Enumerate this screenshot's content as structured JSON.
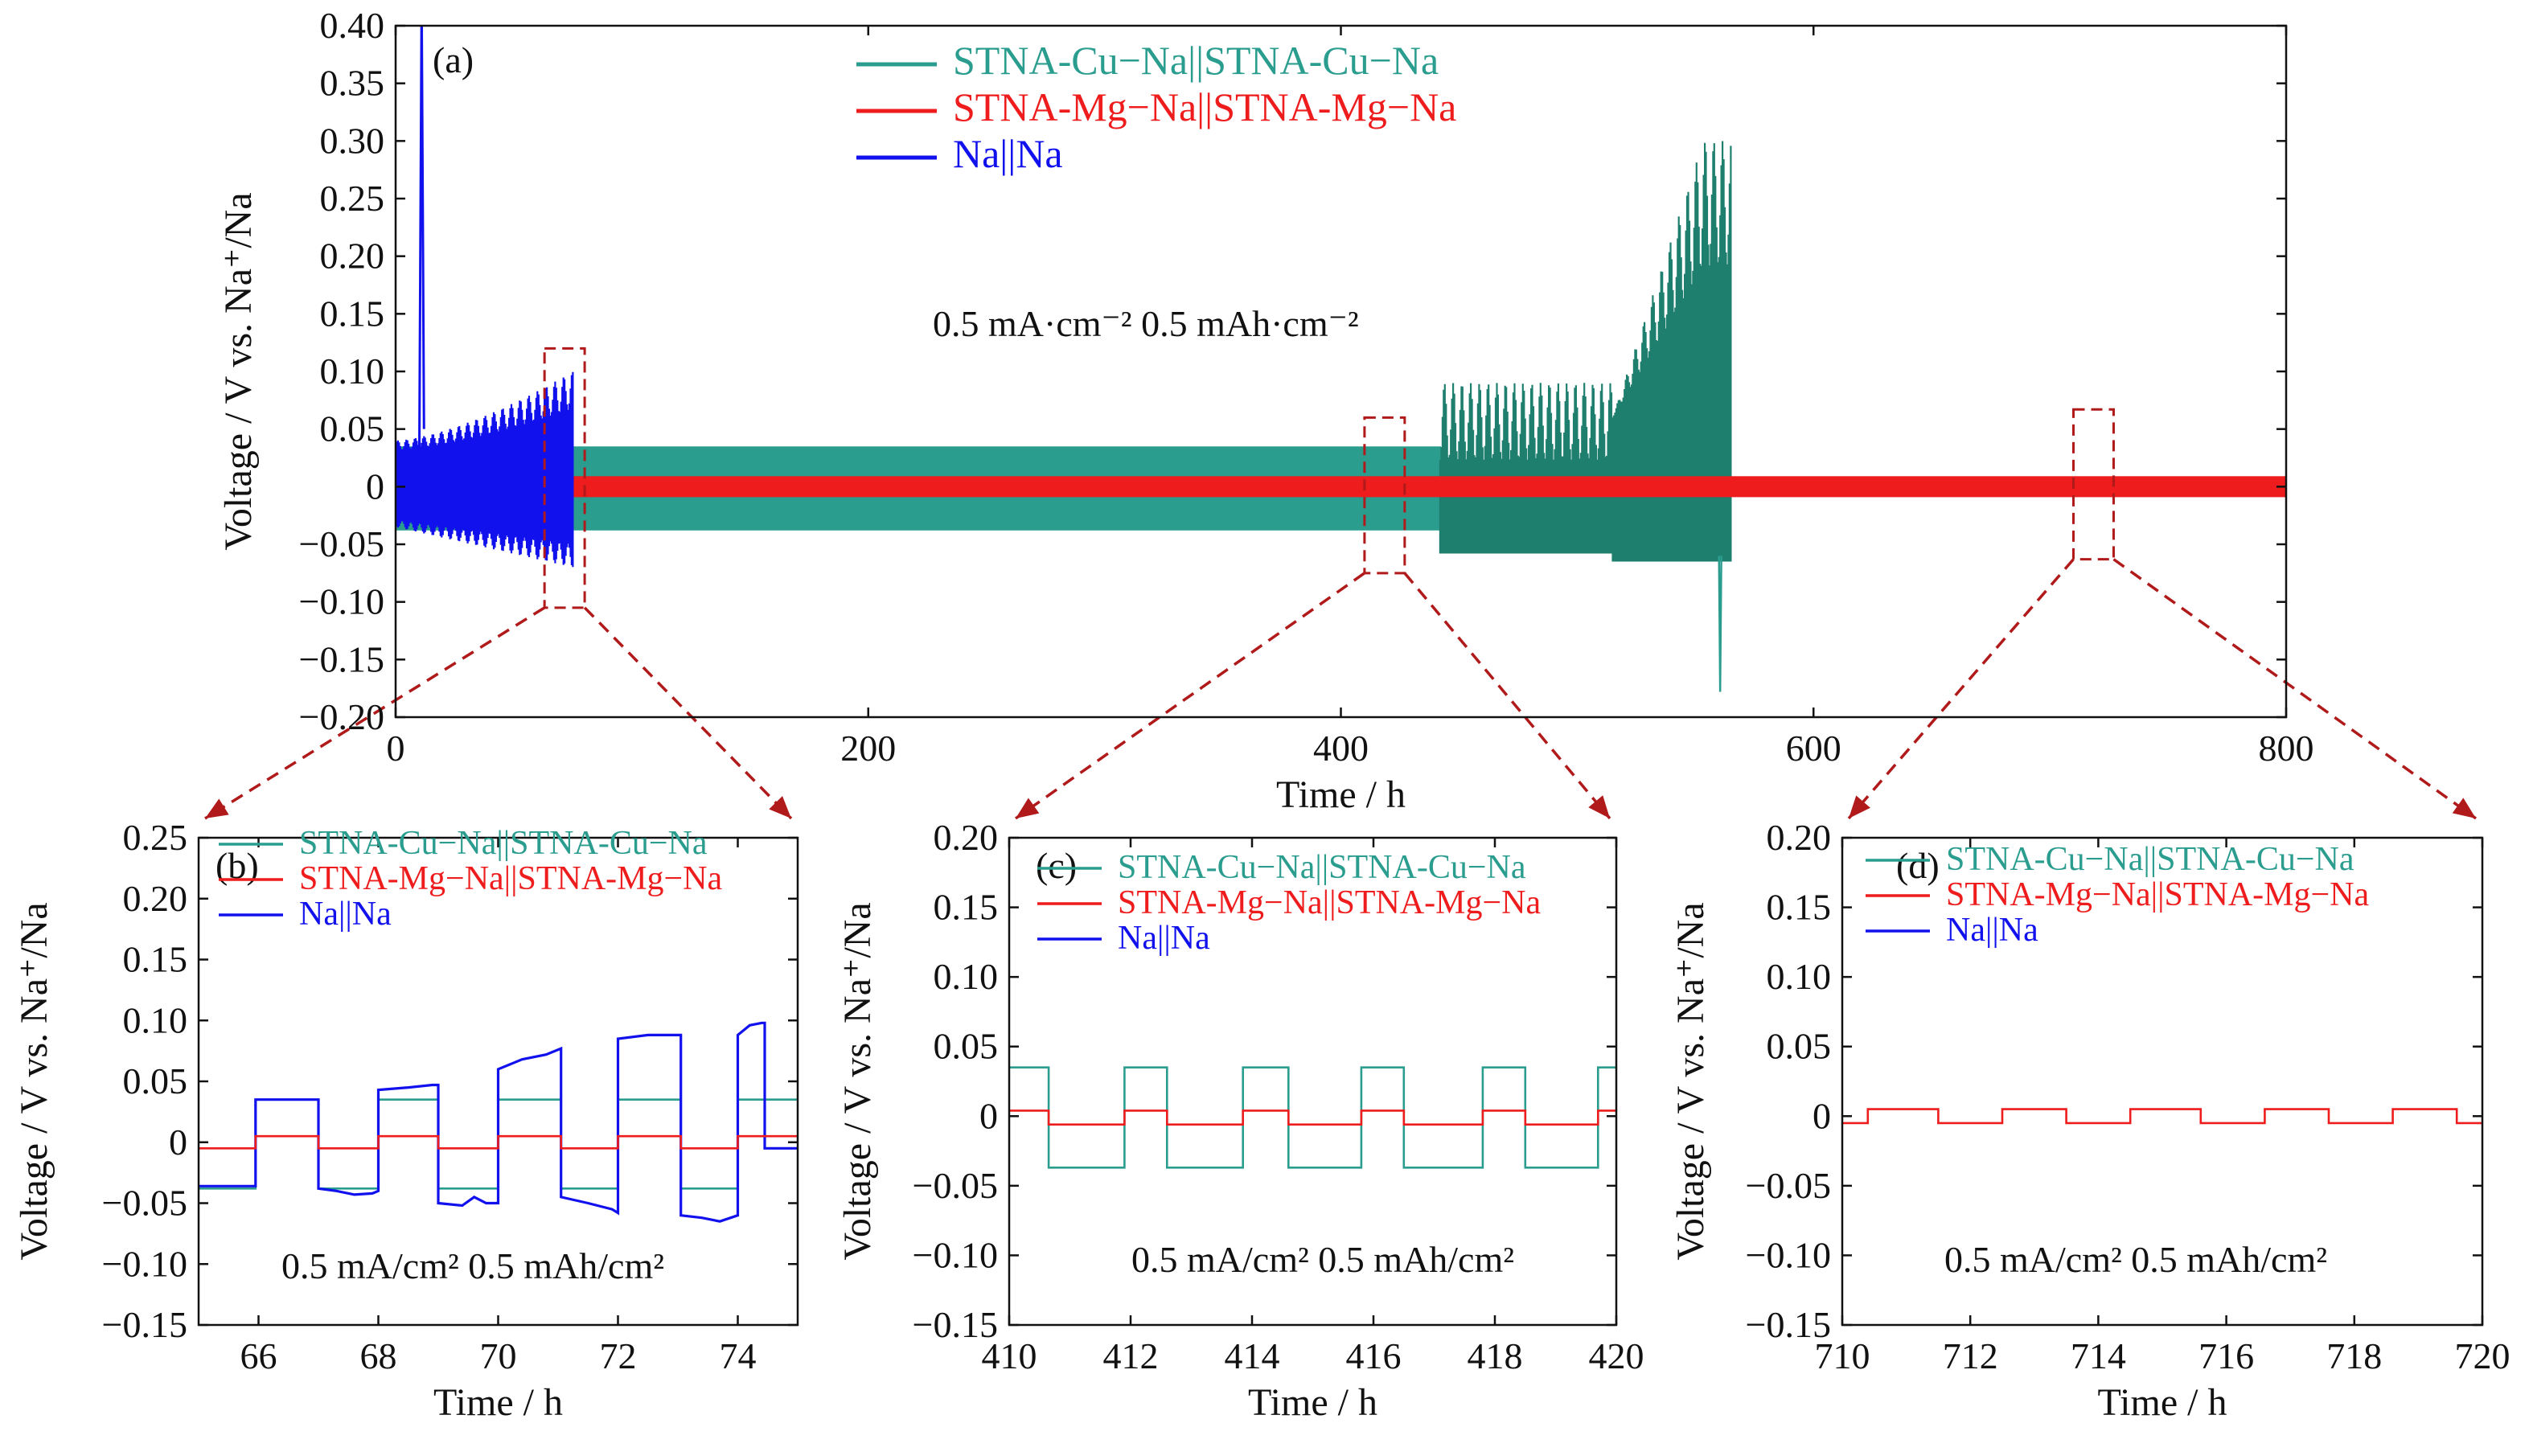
{
  "colors": {
    "cu": "#2a9d8f",
    "cu_dark": "#1f7f6e",
    "mg": "#ee1c1c",
    "na": "#1111ee",
    "highlight": "#b01a1a",
    "axis": "#111111"
  },
  "chart_data": [
    {
      "id": "a",
      "type": "line",
      "panel_label": "(a)",
      "xlabel": "Time / h",
      "ylabel": "Voltage / V vs. Na⁺/Na",
      "xlim": [
        0,
        800
      ],
      "ylim": [
        -0.2,
        0.4
      ],
      "xticks": [
        0,
        200,
        400,
        600,
        800
      ],
      "yticks": [
        -0.2,
        -0.15,
        -0.1,
        -0.05,
        0,
        0.05,
        0.1,
        0.15,
        0.2,
        0.25,
        0.3,
        0.35,
        0.4
      ],
      "xtick_labels": [
        "0",
        "200",
        "400",
        "600",
        "800"
      ],
      "ytick_labels": [
        "−0.20",
        "−0.15",
        "−0.10",
        "−0.05",
        "0",
        "0.05",
        "0.10",
        "0.15",
        "0.20",
        "0.25",
        "0.30",
        "0.35",
        "0.40"
      ],
      "annotation": "0.5 mA·cm⁻²  0.5 mAh·cm⁻²",
      "legend_position": "top-center",
      "series": [
        {
          "key": "cu",
          "name": "STNA-Cu−Na||STNA-Cu−Na",
          "color_key": "cu",
          "segments": [
            {
              "t_start": 0,
              "t_end": 442,
              "v_high": 0.035,
              "v_low": -0.038
            },
            {
              "t_start": 442,
              "t_end": 515,
              "v_high": 0.09,
              "v_low": -0.058
            },
            {
              "t_start": 515,
              "t_end": 565,
              "v_high": 0.3,
              "v_low": -0.065
            }
          ],
          "end_h": 565,
          "min_spike_v": -0.178
        },
        {
          "key": "mg",
          "name": "STNA-Mg−Na||STNA-Mg−Na",
          "color_key": "mg",
          "segments": [
            {
              "t_start": 75,
              "t_end": 800,
              "v_high": 0.007,
              "v_low": -0.007
            }
          ]
        },
        {
          "key": "na",
          "name": "Na||Na",
          "color_key": "na",
          "segments": [
            {
              "t_start": 0,
              "t_end": 75,
              "v_high": 0.1,
              "v_low": -0.07
            }
          ],
          "max_spike_v": 0.42,
          "spike_time_h": 10
        }
      ],
      "zoom_regions": [
        {
          "x_range": [
            63,
            80
          ],
          "y_range": [
            -0.105,
            0.12
          ],
          "target": "b"
        },
        {
          "x_range": [
            410,
            427
          ],
          "y_range": [
            -0.075,
            0.06
          ],
          "target": "c"
        },
        {
          "x_range": [
            710,
            727
          ],
          "y_range": [
            -0.063,
            0.067
          ],
          "target": "d"
        }
      ]
    },
    {
      "id": "b",
      "type": "line",
      "panel_label": "(b)",
      "xlabel": "Time / h",
      "ylabel": "Voltage / V vs. Na⁺/Na",
      "xlim": [
        65,
        75
      ],
      "ylim": [
        -0.15,
        0.25
      ],
      "xticks": [
        66,
        68,
        70,
        72,
        74
      ],
      "yticks": [
        -0.15,
        -0.1,
        -0.05,
        0,
        0.05,
        0.1,
        0.15,
        0.2,
        0.25
      ],
      "xtick_labels": [
        "66",
        "68",
        "70",
        "72",
        "74"
      ],
      "ytick_labels": [
        "−0.15",
        "−0.10",
        "−0.05",
        "0",
        "0.05",
        "0.10",
        "0.15",
        "0.20",
        "0.25"
      ],
      "annotation": "0.5 mA/cm²  0.5 mAh/cm²",
      "legend_position": "top-center",
      "series": [
        {
          "key": "cu",
          "name": "STNA-Cu−Na||STNA-Cu−Na",
          "color_key": "cu",
          "x": [
            65,
            65.95,
            65.95,
            67,
            67,
            68,
            68,
            69,
            69,
            70,
            70,
            71.05,
            71.05,
            72,
            72,
            73.05,
            73.05,
            74,
            74,
            75
          ],
          "y": [
            -0.038,
            -0.038,
            0.035,
            0.035,
            -0.038,
            -0.038,
            0.035,
            0.035,
            -0.038,
            -0.038,
            0.035,
            0.035,
            -0.038,
            -0.038,
            0.035,
            0.035,
            -0.038,
            -0.038,
            0.035,
            0.035
          ]
        },
        {
          "key": "mg",
          "name": "STNA-Mg−Na||STNA-Mg−Na",
          "color_key": "mg",
          "x": [
            65,
            65.95,
            65.95,
            67,
            67,
            68,
            68,
            69,
            69,
            70,
            70,
            71.05,
            71.05,
            72,
            72,
            73.05,
            73.05,
            74,
            74,
            75
          ],
          "y": [
            -0.005,
            -0.005,
            0.005,
            0.005,
            -0.005,
            -0.005,
            0.005,
            0.005,
            -0.005,
            -0.005,
            0.005,
            0.005,
            -0.005,
            -0.005,
            0.005,
            0.005,
            -0.005,
            -0.005,
            0.005,
            0.005
          ]
        },
        {
          "key": "na",
          "name": "Na||Na",
          "color_key": "na",
          "x": [
            65,
            65.95,
            65.95,
            67,
            67,
            67.3,
            67.6,
            67.9,
            68,
            68,
            68.5,
            68.9,
            69,
            69,
            69.4,
            69.6,
            69.8,
            70,
            70,
            70.4,
            70.8,
            71.05,
            71.05,
            71.5,
            71.9,
            72,
            72,
            72.5,
            72.9,
            73.05,
            73.05,
            73.4,
            73.7,
            74,
            74,
            74.2,
            74.4,
            74.45,
            74.45,
            74.6,
            75
          ],
          "y": [
            -0.036,
            -0.036,
            0.035,
            0.035,
            -0.038,
            -0.04,
            -0.043,
            -0.042,
            -0.04,
            0.043,
            0.045,
            0.047,
            0.047,
            -0.05,
            -0.052,
            -0.045,
            -0.05,
            -0.05,
            0.06,
            0.068,
            0.072,
            0.077,
            -0.045,
            -0.05,
            -0.055,
            -0.058,
            0.085,
            0.088,
            0.088,
            0.088,
            -0.06,
            -0.062,
            -0.065,
            -0.06,
            0.088,
            0.096,
            0.098,
            0.098,
            -0.005,
            -0.005,
            -0.005
          ]
        }
      ]
    },
    {
      "id": "c",
      "type": "line",
      "panel_label": "(c)",
      "xlabel": "Time / h",
      "ylabel": "Voltage / V vs. Na⁺/Na",
      "xlim": [
        410,
        420
      ],
      "ylim": [
        -0.15,
        0.2
      ],
      "xticks": [
        410,
        412,
        414,
        416,
        418,
        420
      ],
      "yticks": [
        -0.15,
        -0.1,
        -0.05,
        0,
        0.05,
        0.1,
        0.15,
        0.2
      ],
      "xtick_labels": [
        "410",
        "412",
        "414",
        "416",
        "418",
        "420"
      ],
      "ytick_labels": [
        "−0.15",
        "−0.10",
        "−0.05",
        "0",
        "0.05",
        "0.10",
        "0.15",
        "0.20"
      ],
      "annotation": "0.5 mA/cm²  0.5 mAh/cm²",
      "legend_position": "top-center",
      "series": [
        {
          "key": "cu",
          "name": "STNA-Cu−Na||STNA-Cu−Na",
          "color_key": "cu",
          "x": [
            410,
            410.65,
            410.65,
            411.9,
            411.9,
            412.6,
            412.6,
            413.85,
            413.85,
            414.6,
            414.6,
            415.8,
            415.8,
            416.5,
            416.5,
            417.8,
            417.8,
            418.5,
            418.5,
            419.7,
            419.7,
            420
          ],
          "y": [
            0.035,
            0.035,
            -0.037,
            -0.037,
            0.035,
            0.035,
            -0.037,
            -0.037,
            0.035,
            0.035,
            -0.037,
            -0.037,
            0.035,
            0.035,
            -0.037,
            -0.037,
            0.035,
            0.035,
            -0.037,
            -0.037,
            0.035,
            0.035
          ]
        },
        {
          "key": "mg",
          "name": "STNA-Mg−Na||STNA-Mg−Na",
          "color_key": "mg",
          "x": [
            410,
            410.65,
            410.65,
            411.9,
            411.9,
            412.6,
            412.6,
            413.85,
            413.85,
            414.6,
            414.6,
            415.8,
            415.8,
            416.5,
            416.5,
            417.8,
            417.8,
            418.5,
            418.5,
            419.7,
            419.7,
            420
          ],
          "y": [
            0.004,
            0.004,
            -0.006,
            -0.006,
            0.004,
            0.004,
            -0.006,
            -0.006,
            0.004,
            0.004,
            -0.006,
            -0.006,
            0.004,
            0.004,
            -0.006,
            -0.006,
            0.004,
            0.004,
            -0.006,
            -0.006,
            0.004,
            0.004
          ]
        },
        {
          "key": "na",
          "name": "Na||Na",
          "color_key": "na",
          "x": [],
          "y": []
        }
      ]
    },
    {
      "id": "d",
      "type": "line",
      "panel_label": "(d)",
      "xlabel": "Time / h",
      "ylabel": "Voltage / V vs. Na⁺/Na",
      "xlim": [
        710,
        720
      ],
      "ylim": [
        -0.15,
        0.2
      ],
      "xticks": [
        710,
        712,
        714,
        716,
        718,
        720
      ],
      "yticks": [
        -0.15,
        -0.1,
        -0.05,
        0,
        0.05,
        0.1,
        0.15,
        0.2
      ],
      "xtick_labels": [
        "710",
        "712",
        "714",
        "716",
        "718",
        "720"
      ],
      "ytick_labels": [
        "−0.15",
        "−0.10",
        "−0.05",
        "0",
        "0.05",
        "0.10",
        "0.15",
        "0.20"
      ],
      "annotation": "0.5 mA/cm²  0.5 mAh/cm²",
      "legend_position": "top-center",
      "series": [
        {
          "key": "cu",
          "name": "STNA-Cu−Na||STNA-Cu−Na",
          "color_key": "cu",
          "x": [],
          "y": []
        },
        {
          "key": "mg",
          "name": "STNA-Mg−Na||STNA-Mg−Na",
          "color_key": "mg",
          "x": [
            710,
            710.4,
            710.4,
            711.5,
            711.5,
            712.5,
            712.5,
            713.5,
            713.5,
            714.5,
            714.5,
            715.6,
            715.6,
            716.6,
            716.6,
            717.6,
            717.6,
            718.6,
            718.6,
            719.6,
            719.6,
            720
          ],
          "y": [
            -0.005,
            -0.005,
            0.005,
            0.005,
            -0.005,
            -0.005,
            0.005,
            0.005,
            -0.005,
            -0.005,
            0.005,
            0.005,
            -0.005,
            -0.005,
            0.005,
            0.005,
            -0.005,
            -0.005,
            0.005,
            0.005,
            -0.005,
            -0.005
          ]
        },
        {
          "key": "na",
          "name": "Na||Na",
          "color_key": "na",
          "x": [],
          "y": []
        }
      ]
    }
  ]
}
